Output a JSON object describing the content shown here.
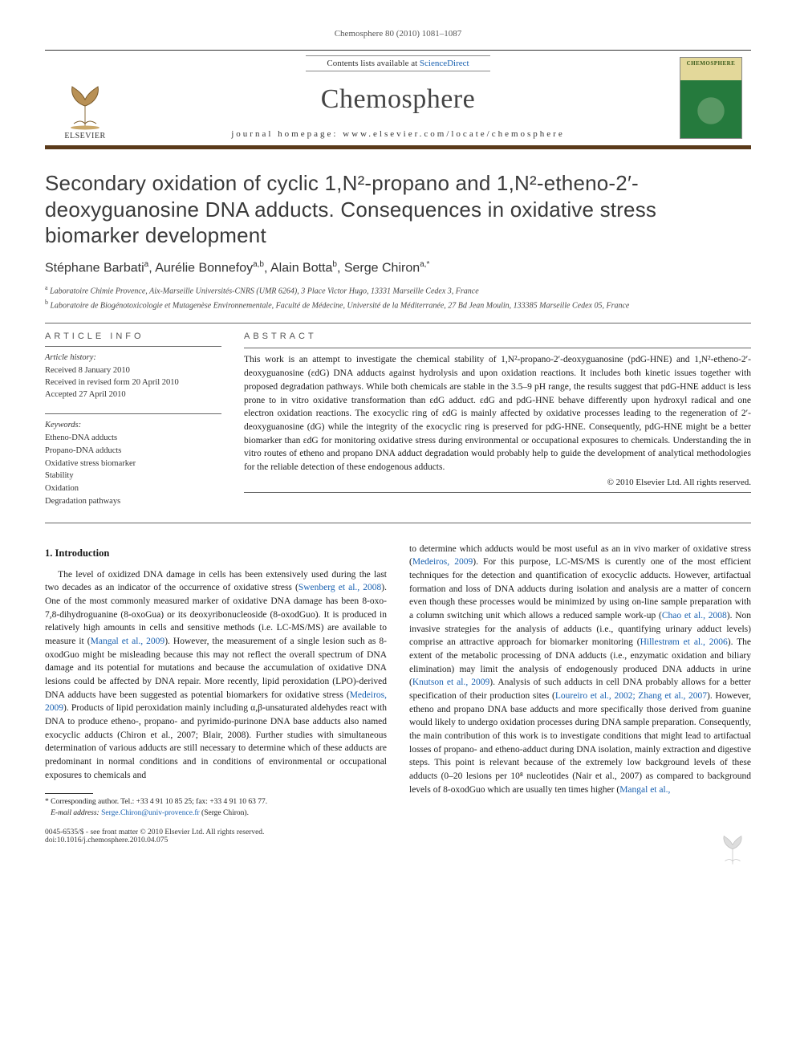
{
  "running_head": "Chemosphere 80 (2010) 1081–1087",
  "masthead": {
    "contents_prefix": "Contents lists available at ",
    "contents_link": "ScienceDirect",
    "journal": "Chemosphere",
    "homepage_label": "journal homepage: www.elsevier.com/locate/chemosphere",
    "publisher": "ELSEVIER",
    "cover_label": "CHEMOSPHERE"
  },
  "title": "Secondary oxidation of cyclic 1,N²-propano and 1,N²-etheno-2′-deoxyguanosine DNA adducts. Consequences in oxidative stress biomarker development",
  "authors_html": "Stéphane Barbati<sup>a</sup>, Aurélie Bonnefoy<sup>a,b</sup>, Alain Botta<sup>b</sup>, Serge Chiron<sup>a,*</sup>",
  "affiliations": {
    "a": "Laboratoire Chimie Provence, Aix-Marseille Universités-CNRS (UMR 6264), 3 Place Victor Hugo, 13331 Marseille Cedex 3, France",
    "b": "Laboratoire de Biogénotoxicologie et Mutagenèse Environnementale, Faculté de Médecine, Université de la Méditerranée, 27 Bd Jean Moulin, 133385 Marseille Cedex 05, France"
  },
  "info": {
    "label": "ARTICLE INFO",
    "history_title": "Article history:",
    "history": [
      "Received 8 January 2010",
      "Received in revised form 20 April 2010",
      "Accepted 27 April 2010"
    ],
    "keywords_title": "Keywords:",
    "keywords": [
      "Etheno-DNA adducts",
      "Propano-DNA adducts",
      "Oxidative stress biomarker",
      "Stability",
      "Oxidation",
      "Degradation pathways"
    ]
  },
  "abstract": {
    "label": "ABSTRACT",
    "text": "This work is an attempt to investigate the chemical stability of 1,N²-propano-2′-deoxyguanosine (pdG-HNE) and 1,N²-etheno-2′-deoxyguanosine (εdG) DNA adducts against hydrolysis and upon oxidation reactions. It includes both kinetic issues together with proposed degradation pathways. While both chemicals are stable in the 3.5–9 pH range, the results suggest that pdG-HNE adduct is less prone to in vitro oxidative transformation than εdG adduct. εdG and pdG-HNE behave differently upon hydroxyl radical and one electron oxidation reactions. The exocyclic ring of εdG is mainly affected by oxidative processes leading to the regeneration of 2′-deoxyguanosine (dG) while the integrity of the exocyclic ring is preserved for pdG-HNE. Consequently, pdG-HNE might be a better biomarker than εdG for monitoring oxidative stress during environmental or occupational exposures to chemicals. Understanding the in vitro routes of etheno and propano DNA adduct degradation would probably help to guide the development of analytical methodologies for the reliable detection of these endogenous adducts.",
    "copyright": "© 2010 Elsevier Ltd. All rights reserved."
  },
  "section_heading": "1. Introduction",
  "intro_col1": "The level of oxidized DNA damage in cells has been extensively used during the last two decades as an indicator of the occurrence of oxidative stress (Swenberg et al., 2008). One of the most commonly measured marker of oxidative DNA damage has been 8-oxo-7,8-dihydroguanine (8-oxoGua) or its deoxyribonucleoside (8-oxodGuo). It is produced in relatively high amounts in cells and sensitive methods (i.e. LC-MS/MS) are available to measure it (Mangal et al., 2009). However, the measurement of a single lesion such as 8-oxodGuo might be misleading because this may not reflect the overall spectrum of DNA damage and its potential for mutations and because the accumulation of oxidative DNA lesions could be affected by DNA repair. More recently, lipid peroxidation (LPO)-derived DNA adducts have been suggested as potential biomarkers for oxidative stress (Medeiros, 2009). Products of lipid peroxidation mainly including α,β-unsaturated aldehydes react with DNA to produce etheno-, propano- and pyrimido-purinone DNA base adducts also named exocyclic adducts (Chiron et al., 2007; Blair, 2008). Further studies with simultaneous determination of various adducts are still necessary to determine which of these adducts are predominant in normal conditions and in conditions of environmental or occupational exposures to chemicals and",
  "intro_col2": "to determine which adducts would be most useful as an in vivo marker of oxidative stress (Medeiros, 2009). For this purpose, LC-MS/MS is curently one of the most efficient techniques for the detection and quantification of exocyclic adducts. However, artifactual formation and loss of DNA adducts during isolation and analysis are a matter of concern even though these processes would be minimized by using on-line sample preparation with a column switching unit which allows a reduced sample work-up (Chao et al., 2008). Non invasive strategies for the analysis of adducts (i.e., quantifying urinary adduct levels) comprise an attractive approach for biomarker monitoring (Hillestrøm et al., 2006). The extent of the metabolic processing of DNA adducts (i.e., enzymatic oxidation and biliary elimination) may limit the analysis of endogenously produced DNA adducts in urine (Knutson et al., 2009). Analysis of such adducts in cell DNA probably allows for a better specification of their production sites (Loureiro et al., 2002; Zhang et al., 2007). However, etheno and propano DNA base adducts and more specifically those derived from guanine would likely to undergo oxidation processes during DNA sample preparation. Consequently, the main contribution of this work is to investigate conditions that might lead to artifactual losses of propano- and etheno-adduct during DNA isolation, mainly extraction and digestive steps. This point is relevant because of the extremely low background levels of these adducts (0–20 lesions per 10⁸ nucleotides (Nair et al., 2007) as compared to background levels of 8-oxodGuo which are usually ten times higher (Mangal et al.,",
  "footnote": {
    "corr": "* Corresponding author. Tel.: +33 4 91 10 85 25; fax: +33 4 91 10 63 77.",
    "email_label": "E-mail address:",
    "email": "Serge.Chiron@univ-provence.fr",
    "email_who": "(Serge Chiron)."
  },
  "footer": {
    "left1": "0045-6535/$ - see front matter © 2010 Elsevier Ltd. All rights reserved.",
    "left2": "doi:10.1016/j.chemosphere.2010.04.075"
  },
  "colors": {
    "brand_bar": "#5a3a1a",
    "link": "#1860b0",
    "text": "#1a1a1a",
    "muted": "#555555"
  }
}
